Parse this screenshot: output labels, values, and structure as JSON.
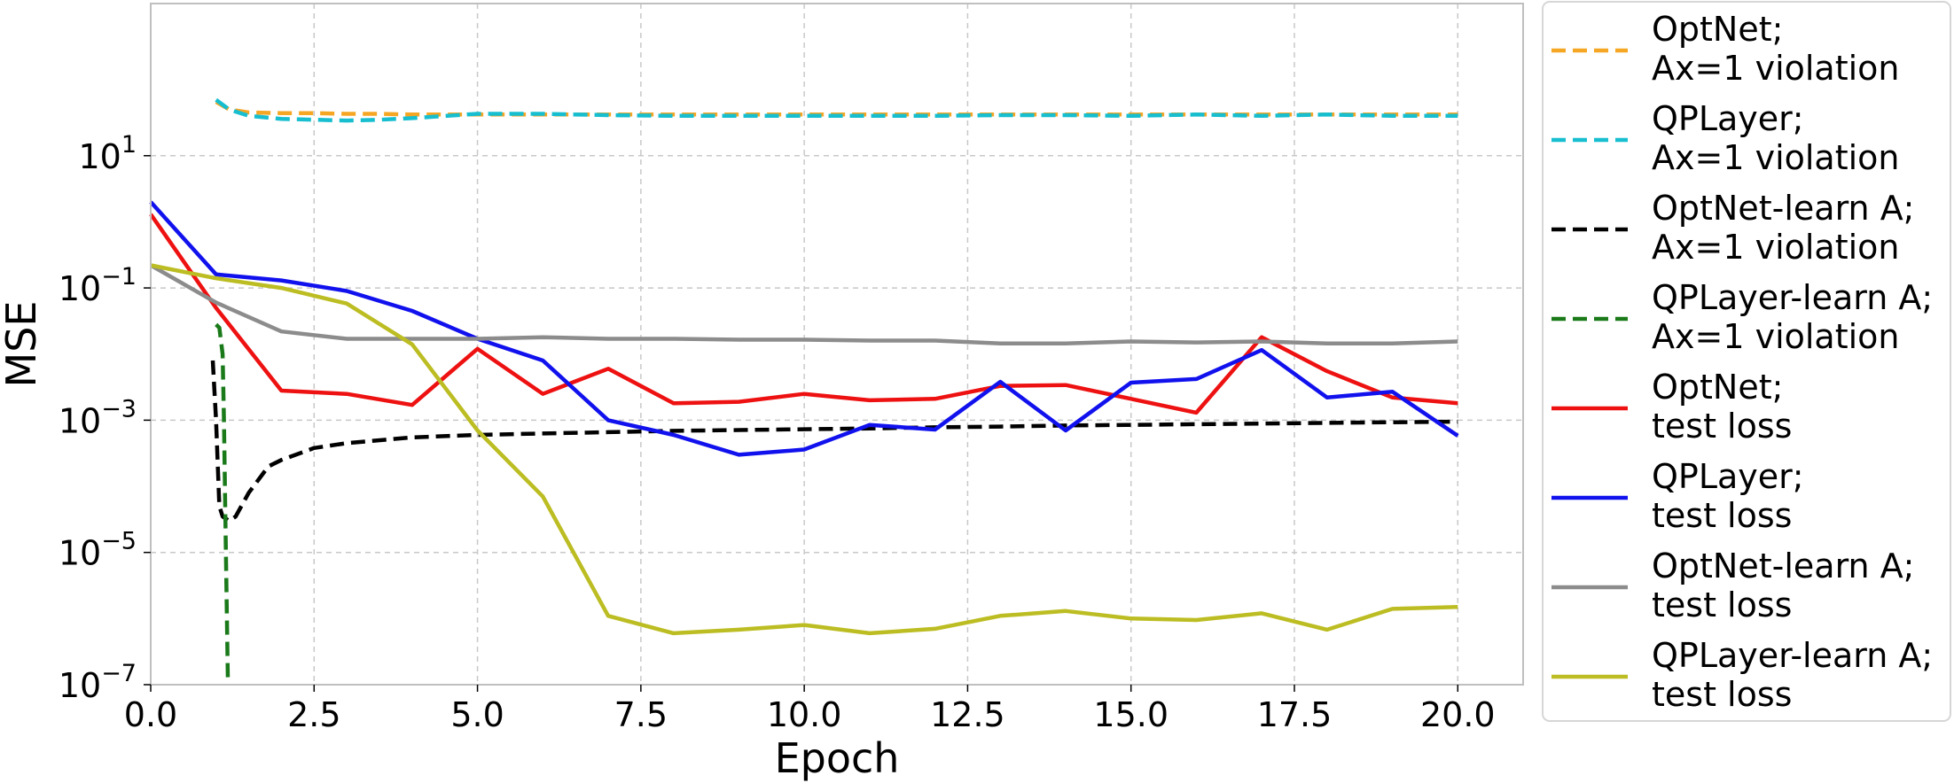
{
  "chart_data": {
    "type": "line",
    "title": "",
    "xlabel": "Epoch",
    "ylabel": "MSE",
    "xlim": [
      0,
      21.0
    ],
    "ylim": [
      1e-07,
      2000
    ],
    "yscale": "log",
    "grid": true,
    "legend_position": "outside-right",
    "x_ticks": [
      "0.0",
      "2.5",
      "5.0",
      "7.5",
      "10.0",
      "12.5",
      "15.0",
      "17.5",
      "20.0"
    ],
    "y_ticks": [
      {
        "base": "10",
        "exp": "1"
      },
      {
        "base": "10",
        "exp": "−1"
      },
      {
        "base": "10",
        "exp": "−3"
      },
      {
        "base": "10",
        "exp": "−5"
      },
      {
        "base": "10",
        "exp": "−7"
      }
    ],
    "series": [
      {
        "name_line1": "OptNet;",
        "name_line2": "Ax=1 violation",
        "color": "#f5a623",
        "dash": true,
        "x": [
          1,
          1.2,
          1.5,
          2,
          2.5,
          3,
          3.5,
          4,
          5,
          6,
          7,
          8,
          9,
          10,
          11,
          12,
          13,
          14,
          15,
          16,
          17,
          18,
          19,
          20
        ],
        "y": [
          65,
          50,
          45,
          44,
          44,
          43,
          43,
          42,
          42,
          42,
          42,
          42,
          42,
          42,
          42,
          42,
          42,
          42,
          42,
          42,
          42,
          42,
          42,
          42
        ]
      },
      {
        "name_line1": "QPLayer;",
        "name_line2": "Ax=1 violation",
        "color": "#17becf",
        "dash": true,
        "x": [
          1,
          1.2,
          1.5,
          2,
          2.5,
          3,
          3.5,
          4,
          5,
          6,
          7,
          8,
          9,
          10,
          11,
          12,
          13,
          14,
          15,
          16,
          17,
          18,
          19,
          20
        ],
        "y": [
          70,
          50,
          40,
          36,
          35,
          34,
          35,
          37,
          43,
          43,
          41,
          40,
          40,
          40,
          40,
          40,
          41,
          41,
          40,
          42,
          40,
          42,
          40,
          40
        ]
      },
      {
        "name_line1": "OptNet-learn A;",
        "name_line2": "Ax=1 violation",
        "color": "#000000",
        "dash": true,
        "x": [
          0.95,
          1.0,
          1.05,
          1.1,
          1.2,
          1.3,
          1.5,
          1.8,
          2,
          2.5,
          3,
          4,
          5,
          6,
          7,
          8,
          9,
          10,
          11,
          12,
          13,
          14,
          15,
          16,
          17,
          18,
          19,
          20
        ],
        "y": [
          0.008,
          0.001,
          5e-05,
          3.5e-05,
          3e-05,
          3.5e-05,
          8e-05,
          0.0002,
          0.00025,
          0.00038,
          0.00045,
          0.00055,
          0.0006,
          0.00063,
          0.00066,
          0.00069,
          0.00071,
          0.00073,
          0.00075,
          0.00078,
          0.0008,
          0.00083,
          0.00085,
          0.00087,
          0.00089,
          0.00091,
          0.00093,
          0.00095
        ]
      },
      {
        "name_line1": "QPLayer-learn A;",
        "name_line2": "Ax=1 violation",
        "color": "#1a7a1a",
        "dash": true,
        "x": [
          1.0,
          1.05,
          1.1,
          1.12,
          1.15,
          1.18
        ],
        "y": [
          0.028,
          0.025,
          0.01,
          0.001,
          1e-05,
          1.2e-07
        ]
      },
      {
        "name_line1": "OptNet;",
        "name_line2": "test loss",
        "color": "#ee1111",
        "dash": false,
        "x": [
          0,
          1,
          2,
          3,
          4,
          5,
          6,
          7,
          8,
          9,
          10,
          11,
          12,
          13,
          14,
          15,
          16,
          17,
          18,
          19,
          20
        ],
        "y": [
          1.3,
          0.05,
          0.0028,
          0.0025,
          0.0017,
          0.012,
          0.0025,
          0.006,
          0.0018,
          0.0019,
          0.0025,
          0.002,
          0.0021,
          0.0033,
          0.0034,
          0.0021,
          0.0013,
          0.018,
          0.0055,
          0.0022,
          0.0018
        ]
      },
      {
        "name_line1": "QPLayer;",
        "name_line2": "test loss",
        "color": "#1111ee",
        "dash": false,
        "x": [
          0,
          1,
          2,
          3,
          4,
          5,
          6,
          7,
          8,
          9,
          10,
          11,
          12,
          13,
          14,
          15,
          16,
          17,
          18,
          19,
          20
        ],
        "y": [
          2,
          0.16,
          0.13,
          0.09,
          0.045,
          0.017,
          0.008,
          0.001,
          0.0006,
          0.0003,
          0.00036,
          0.00085,
          0.00072,
          0.0038,
          0.0007,
          0.0037,
          0.0042,
          0.0115,
          0.0022,
          0.0027,
          0.00058
        ]
      },
      {
        "name_line1": "OptNet-learn A;",
        "name_line2": "test loss",
        "color": "#8c8c8c",
        "dash": false,
        "x": [
          0,
          1,
          2,
          3,
          4,
          5,
          6,
          7,
          8,
          9,
          10,
          11,
          12,
          13,
          14,
          15,
          16,
          17,
          18,
          19,
          20
        ],
        "y": [
          0.22,
          0.06,
          0.022,
          0.017,
          0.017,
          0.017,
          0.018,
          0.017,
          0.017,
          0.0165,
          0.0165,
          0.016,
          0.016,
          0.0145,
          0.0145,
          0.0155,
          0.015,
          0.0155,
          0.0145,
          0.0145,
          0.0155
        ]
      },
      {
        "name_line1": "QPLayer-learn A;",
        "name_line2": "test loss",
        "color": "#bcbd22",
        "dash": false,
        "x": [
          0,
          1,
          2,
          3,
          4,
          5,
          6,
          7,
          8,
          9,
          10,
          11,
          12,
          13,
          14,
          15,
          16,
          17,
          18,
          19,
          20
        ],
        "y": [
          0.22,
          0.14,
          0.1,
          0.058,
          0.014,
          0.0007,
          7e-05,
          1.1e-06,
          6e-07,
          6.8e-07,
          8e-07,
          6e-07,
          7e-07,
          1.1e-06,
          1.3e-06,
          1e-06,
          9.5e-07,
          1.2e-06,
          6.8e-07,
          1.4e-06,
          1.5e-06
        ]
      }
    ]
  }
}
